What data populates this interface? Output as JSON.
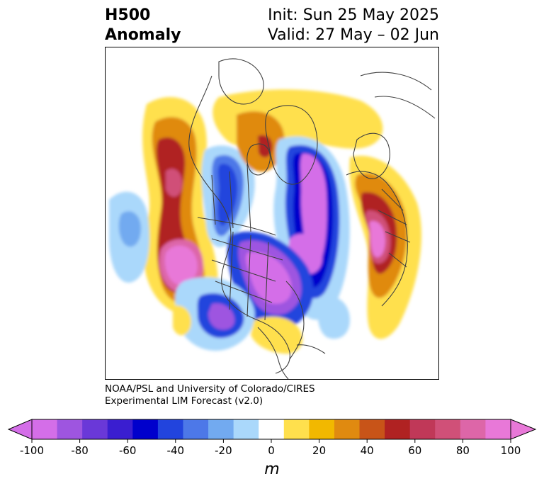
{
  "title": {
    "left_line1": "H500",
    "left_line2": "Anomaly",
    "right_line1": "Init: Sun 25 May 2025",
    "right_line2": "Valid: 27 May – 02 Jun"
  },
  "credit": {
    "line1": "NOAA/PSL and University of Colorado/CIRES",
    "line2": "Experimental LIM Forecast (v2.0)"
  },
  "colorbar": {
    "unit_label": "m",
    "ticks": [
      "-100",
      "-80",
      "-60",
      "-40",
      "-20",
      "0",
      "20",
      "40",
      "60",
      "80",
      "100"
    ],
    "levels": [
      -100,
      -90,
      -80,
      -70,
      -60,
      -50,
      -40,
      -30,
      -20,
      -10,
      10,
      20,
      30,
      40,
      50,
      60,
      70,
      80,
      90,
      100
    ],
    "colors": [
      "#d46ee8",
      "#9e55e0",
      "#6a38d8",
      "#3a1ed0",
      "#0000cc",
      "#2244dd",
      "#4d78e8",
      "#72aaf0",
      "#aad8fb",
      "#ffffff",
      "#ffe04d",
      "#f2b800",
      "#e08a10",
      "#c85418",
      "#b02222",
      "#c03858",
      "#d05078",
      "#dd66a8",
      "#e878d8"
    ],
    "under_color": "#d46ee8",
    "over_color": "#e878d8"
  }
}
